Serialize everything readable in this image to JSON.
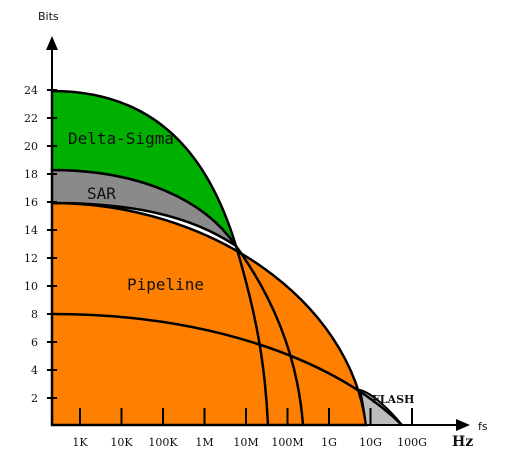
{
  "axes": {
    "y_title": "Bits",
    "x_title": "fs",
    "x_unit": "Hz",
    "y_ticks": [
      "2",
      "4",
      "6",
      "8",
      "10",
      "12",
      "14",
      "16",
      "18",
      "20",
      "22",
      "24"
    ],
    "x_ticks": [
      "1K",
      "10K",
      "100K",
      "1M",
      "10M",
      "100M",
      "1G",
      "10G",
      "100G"
    ]
  },
  "regions": [
    {
      "name": "Delta-Sigma",
      "color": "#00b000",
      "max_bits": 24
    },
    {
      "name": "SAR",
      "color": "#8a8a8a",
      "max_bits": 18.5
    },
    {
      "name": "Pipeline",
      "color": "#ff8000",
      "max_bits": 16
    },
    {
      "name": "FLASH",
      "color": "#bdbdbd",
      "max_bits": 8
    }
  ]
}
